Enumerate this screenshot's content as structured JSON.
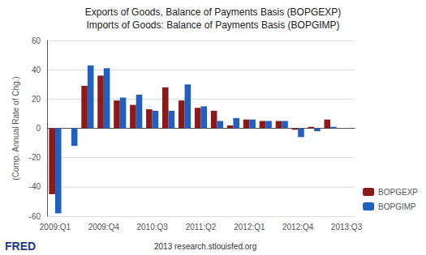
{
  "chart_data": {
    "type": "bar",
    "title": "Exports of Goods, Balance of Payments Basis (BOPGEXP)",
    "subtitle": "Imports of Goods: Balance of Payments Basis (BOPGIMP)",
    "ylabel": "(Comp. Annual Rate of Chg.)",
    "annotations": [
      "FRED",
      "2013 research.stlouisfed.org"
    ],
    "categories": [
      "2009:Q1",
      null,
      null,
      "2009:Q4",
      null,
      null,
      "2010:Q3",
      null,
      null,
      "2011:Q2",
      null,
      null,
      "2012:Q1",
      null,
      null,
      "2012:Q4",
      null,
      null,
      "2013:Q3"
    ],
    "series": [
      {
        "name": "BOPGEXP",
        "color": "#8B1A1A",
        "values": [
          -45,
          0,
          29,
          36,
          19,
          16,
          13,
          28,
          19,
          14,
          12,
          2,
          6,
          5,
          5,
          -1,
          1,
          6,
          0
        ]
      },
      {
        "name": "BOPGIMP",
        "color": "#2060C0",
        "values": [
          -58,
          -12,
          43,
          41,
          21,
          23,
          12,
          12,
          30,
          15,
          5,
          7,
          6,
          5,
          5,
          -6,
          -2,
          1,
          0
        ]
      }
    ],
    "ylim": [
      -60,
      60
    ],
    "yticks": [
      -60,
      -40,
      -20,
      0,
      20,
      40,
      60
    ],
    "grid": true,
    "legend": "lower right"
  }
}
